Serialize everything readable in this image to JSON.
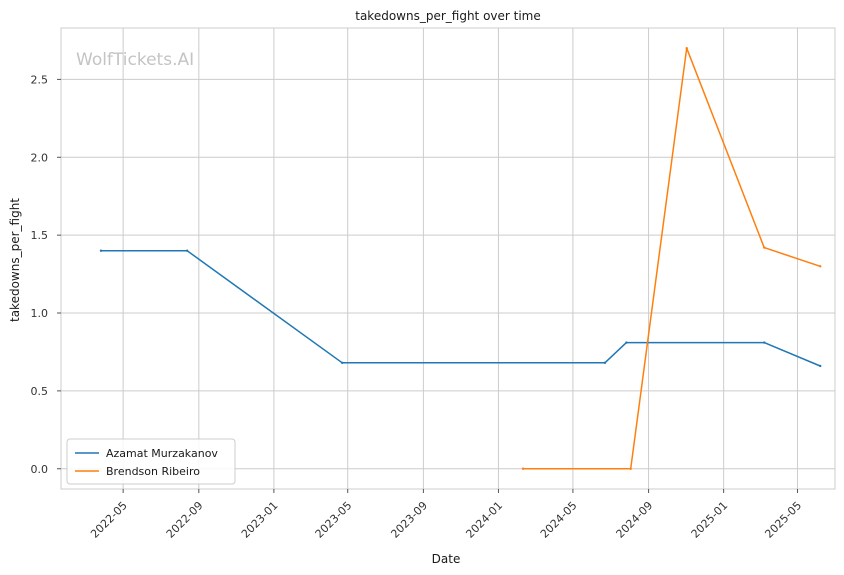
{
  "chart_data": {
    "type": "line",
    "title": "takedowns_per_fight over time",
    "xlabel": "Date",
    "ylabel": "takedowns_per_fight",
    "watermark": "WolfTickets.AI",
    "x_ticks": [
      "2022-05",
      "2022-09",
      "2023-01",
      "2023-05",
      "2023-09",
      "2024-01",
      "2024-05",
      "2024-09",
      "2025-01",
      "2025-05"
    ],
    "y_ticks": [
      "0.0",
      "0.5",
      "1.0",
      "1.5",
      "2.0",
      "2.5"
    ],
    "xlim": [
      "2022-01-20",
      "2025-07-01"
    ],
    "ylim": [
      -0.13,
      2.83
    ],
    "grid": true,
    "legend_position": "lower-left",
    "series": [
      {
        "name": "Azamat Murzakanov",
        "color": "#1f77b4",
        "points": [
          {
            "x": "2022-03-26",
            "y": 1.4
          },
          {
            "x": "2022-08-13",
            "y": 1.4
          },
          {
            "x": "2023-04-22",
            "y": 0.68
          },
          {
            "x": "2024-06-22",
            "y": 0.68
          },
          {
            "x": "2024-07-27",
            "y": 0.81
          },
          {
            "x": "2025-03-08",
            "y": 0.81
          },
          {
            "x": "2025-06-07",
            "y": 0.66
          }
        ]
      },
      {
        "name": "Brendson Ribeiro",
        "color": "#ff7f0e",
        "points": [
          {
            "x": "2024-02-10",
            "y": 0.0
          },
          {
            "x": "2024-08-03",
            "y": 0.0
          },
          {
            "x": "2024-11-02",
            "y": 2.7
          },
          {
            "x": "2025-03-08",
            "y": 1.42
          },
          {
            "x": "2025-06-07",
            "y": 1.3
          }
        ]
      }
    ]
  }
}
